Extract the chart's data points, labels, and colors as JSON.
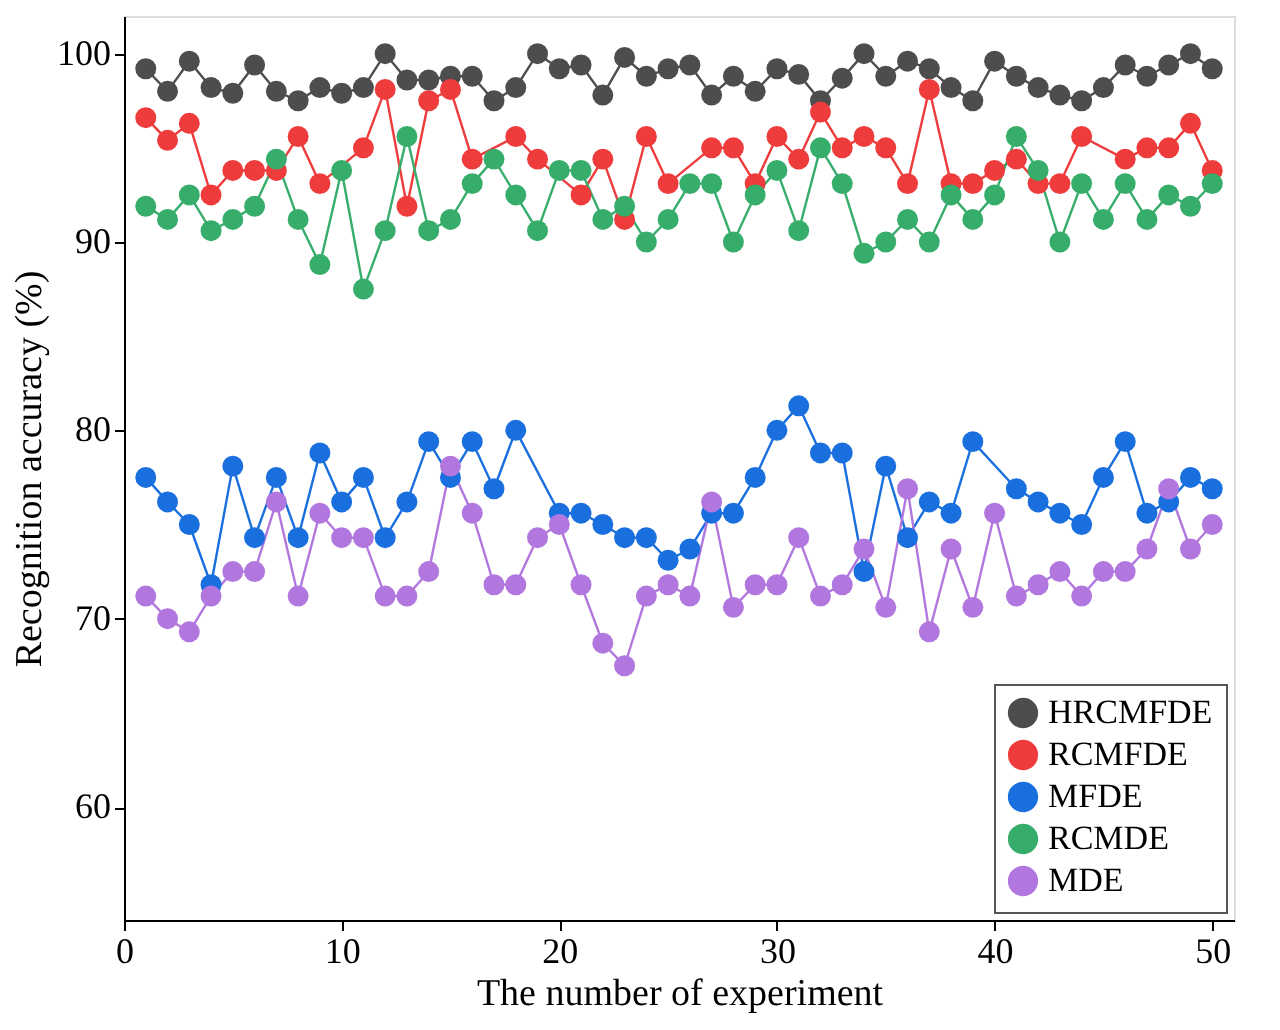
{
  "chart_data": {
    "type": "line",
    "xlabel": "The number of experiment",
    "ylabel": "Recognition accuracy (%)",
    "x": [
      1,
      2,
      3,
      4,
      5,
      6,
      7,
      8,
      9,
      10,
      11,
      12,
      13,
      14,
      15,
      16,
      17,
      18,
      19,
      20,
      21,
      22,
      23,
      24,
      25,
      26,
      27,
      28,
      29,
      30,
      31,
      32,
      33,
      34,
      35,
      36,
      37,
      38,
      39,
      40,
      41,
      42,
      43,
      44,
      45,
      46,
      47,
      48,
      49,
      50
    ],
    "xlim": [
      0,
      51
    ],
    "xticks": [
      0,
      10,
      20,
      30,
      40,
      50
    ],
    "ylim": [
      54,
      102
    ],
    "yticks": [
      60,
      70,
      80,
      90,
      100
    ],
    "marker": "circle",
    "line_style": "solid",
    "grid": false,
    "legend": "bottom right",
    "series": [
      {
        "name": "HRCMFDE",
        "color": "#4d4d4d",
        "values": [
          99.2,
          98.0,
          99.6,
          98.2,
          97.9,
          99.4,
          98.0,
          97.5,
          98.2,
          97.9,
          98.2,
          100.0,
          98.6,
          98.6,
          98.8,
          98.8,
          97.5,
          98.2,
          100.0,
          99.2,
          99.4,
          97.8,
          99.8,
          98.8,
          99.2,
          99.4,
          97.8,
          98.8,
          98.0,
          99.2,
          98.9,
          97.5,
          98.7,
          100.0,
          98.8,
          99.6,
          99.2,
          98.2,
          97.5,
          99.6,
          98.8,
          98.2,
          97.8,
          97.5,
          98.2,
          99.4,
          98.8,
          99.4,
          100.0,
          99.2
        ]
      },
      {
        "name": "RCMFDE",
        "color": "#ee3b3b",
        "values": [
          96.6,
          95.4,
          96.3,
          92.5,
          93.8,
          93.8,
          93.8,
          95.6,
          93.1,
          null,
          95.0,
          98.1,
          91.9,
          97.5,
          98.1,
          94.4,
          null,
          95.6,
          94.4,
          null,
          92.5,
          94.4,
          91.2,
          95.6,
          93.1,
          null,
          95.0,
          95.0,
          93.1,
          95.6,
          94.4,
          96.9,
          95.0,
          95.6,
          95.0,
          93.1,
          98.1,
          93.1,
          93.1,
          93.8,
          94.4,
          93.1,
          93.1,
          95.6,
          null,
          94.4,
          95.0,
          95.0,
          96.3,
          93.8
        ]
      },
      {
        "name": "MFDE",
        "color": "#1a6fdf",
        "values": [
          77.5,
          76.2,
          75.0,
          71.8,
          78.1,
          74.3,
          77.5,
          74.3,
          78.8,
          76.2,
          77.5,
          74.3,
          76.2,
          79.4,
          77.5,
          79.4,
          76.9,
          80.0,
          null,
          75.6,
          75.6,
          75.0,
          74.3,
          74.3,
          73.1,
          73.7,
          75.6,
          75.6,
          77.5,
          80.0,
          81.3,
          78.8,
          78.8,
          72.5,
          78.1,
          74.3,
          76.2,
          75.6,
          79.4,
          null,
          76.9,
          76.2,
          75.6,
          75.0,
          77.5,
          79.4,
          75.6,
          76.2,
          77.5,
          76.9
        ]
      },
      {
        "name": "RCMDE",
        "color": "#37ad6b",
        "values": [
          91.9,
          91.2,
          92.5,
          90.6,
          91.2,
          91.9,
          94.4,
          91.2,
          88.8,
          93.8,
          87.5,
          90.6,
          95.6,
          90.6,
          91.2,
          93.1,
          94.4,
          92.5,
          90.6,
          93.8,
          93.8,
          91.2,
          91.9,
          90.0,
          91.2,
          93.1,
          93.1,
          90.0,
          92.5,
          93.8,
          90.6,
          95.0,
          93.1,
          89.4,
          90.0,
          91.2,
          90.0,
          92.5,
          91.2,
          92.5,
          95.6,
          93.8,
          90.0,
          93.1,
          91.2,
          93.1,
          91.2,
          92.5,
          91.9,
          93.1
        ]
      },
      {
        "name": "MDE",
        "color": "#b177de",
        "values": [
          71.2,
          70.0,
          69.3,
          71.2,
          72.5,
          72.5,
          76.2,
          71.2,
          75.6,
          74.3,
          74.3,
          71.2,
          71.2,
          72.5,
          78.1,
          75.6,
          71.8,
          71.8,
          74.3,
          75.0,
          71.8,
          68.7,
          67.5,
          71.2,
          71.8,
          71.2,
          76.2,
          70.6,
          71.8,
          71.8,
          74.3,
          71.2,
          71.8,
          73.7,
          70.6,
          76.9,
          69.3,
          73.7,
          70.6,
          75.6,
          71.2,
          71.8,
          72.5,
          71.2,
          72.5,
          72.5,
          73.7,
          76.9,
          73.7,
          75.0
        ]
      }
    ]
  }
}
